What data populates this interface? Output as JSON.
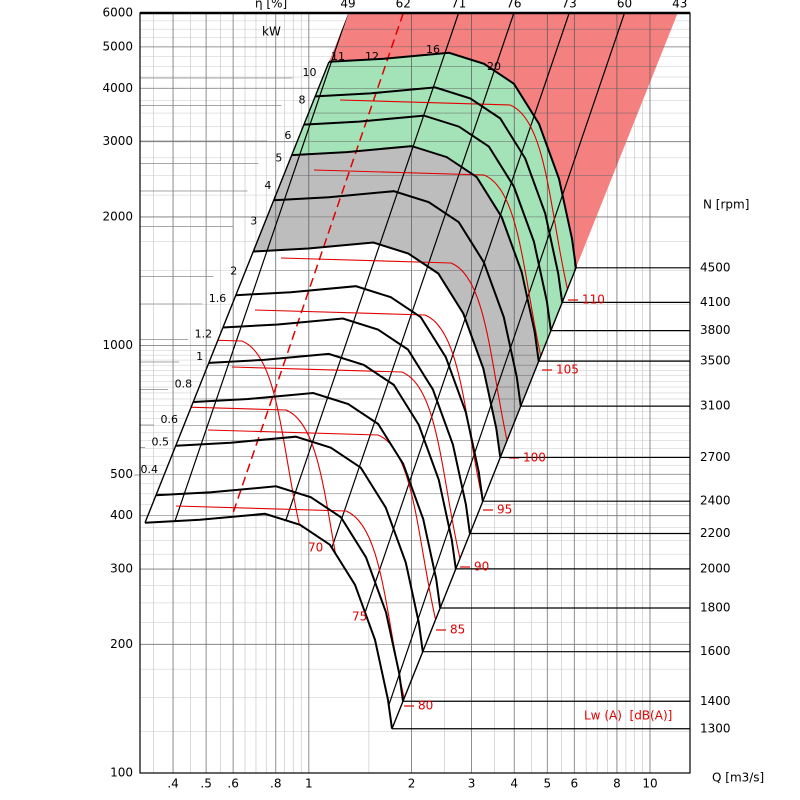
{
  "chart_data": {
    "type": "fan-curve",
    "x_label": "Q [m3/s]",
    "y2_label": "N [rpm]",
    "efficiency_label": "η [%]",
    "efficiency_values": [
      49,
      62,
      71,
      76,
      73,
      60,
      43
    ],
    "power_label": "kW",
    "power_values": [
      10,
      8,
      6,
      5,
      4,
      3,
      2,
      1.6,
      1.2,
      1,
      0.8,
      0.6,
      0.5,
      0.4
    ],
    "noise_label": "Lw (A)  [dB(A)]",
    "noise_values": [
      70,
      75,
      80,
      85,
      90,
      95,
      100,
      105,
      110
    ],
    "top_values": [
      11,
      12,
      16,
      20
    ],
    "xscale": "log",
    "xlim": [
      0.32,
      13.1
    ],
    "xticks": [
      {
        "value": 0.4,
        "label": ".4"
      },
      {
        "value": 0.5,
        "label": ".5"
      },
      {
        "value": 0.6,
        "label": ".6"
      },
      {
        "value": 0.8,
        "label": ".8"
      },
      1,
      2,
      3,
      4,
      5,
      6,
      8,
      10
    ],
    "yscale": "log",
    "ylim": [
      100,
      6000
    ],
    "yticks": [
      100,
      200,
      300,
      400,
      500,
      1000,
      2000,
      3000,
      4000,
      5000,
      6000
    ],
    "y2scale": "log",
    "y2lim": [
      1154,
      8940
    ],
    "y2ticks": [
      4500,
      4100,
      3800,
      3500,
      3100,
      2700,
      2400,
      2200,
      2000,
      1800,
      1600,
      1400,
      1300
    ],
    "grid": true
  }
}
